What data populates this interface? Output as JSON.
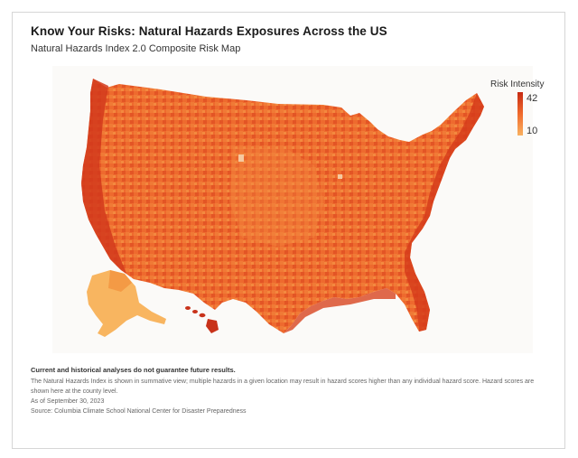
{
  "header": {
    "title": "Know Your Risks: Natural Hazards Exposures Across the US",
    "subtitle": "Natural Hazards Index 2.0 Composite Risk Map"
  },
  "legend": {
    "title": "Risk Intensity",
    "max": "42",
    "min": "10",
    "colors": {
      "high": "#c62a12",
      "mid": "#f06a2c",
      "low": "#f9b160"
    }
  },
  "notes": {
    "disclaimer": "Current and historical analyses do not guarantee future results.",
    "description": "The Natural Hazards Index is shown in summative view; multiple hazards in a given location may result in hazard scores higher than any individual hazard score. Hazard scores are shown here at the county level.",
    "as_of": "As of September 30, 2023",
    "source": "Source: Columbia Climate School National Center for Disaster Preparedness"
  }
}
